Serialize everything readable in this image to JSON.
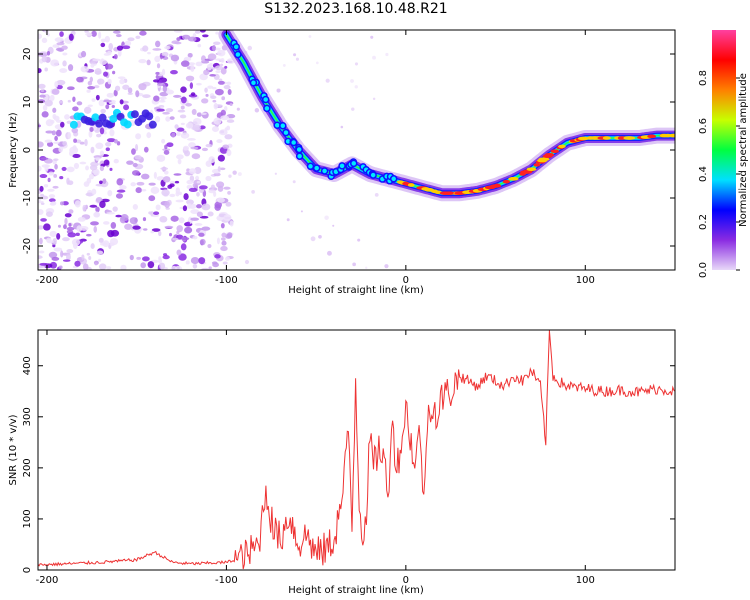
{
  "title": "S132.2023.168.10.48.R21",
  "chart_data": [
    {
      "type": "heatmap",
      "xlabel": "Height of straight line (km)",
      "ylabel": "Frequency (Hz)",
      "xlim": [
        -205,
        150
      ],
      "ylim": [
        -25,
        25
      ],
      "xticks": [
        -200,
        -100,
        0,
        100
      ],
      "yticks": [
        -20,
        -10,
        0,
        10,
        20
      ],
      "colormap": [
        "#e8d8f8",
        "#8a2be2",
        "#0000ff",
        "#00e0ff",
        "#00ff40",
        "#c8ff00",
        "#ff8000",
        "#ff0000",
        "#ff40a0"
      ],
      "colorbar": {
        "label": "Normalized spectral amplitude",
        "range": [
          0,
          1
        ],
        "ticks": [
          "0.0",
          "0.2",
          "0.4",
          "0.6",
          "0.8"
        ]
      },
      "ridge": [
        {
          "x": -100,
          "y": 24
        },
        {
          "x": -90,
          "y": 18
        },
        {
          "x": -80,
          "y": 11
        },
        {
          "x": -70,
          "y": 5
        },
        {
          "x": -60,
          "y": 0
        },
        {
          "x": -50,
          "y": -4
        },
        {
          "x": -40,
          "y": -5
        },
        {
          "x": -30,
          "y": -3
        },
        {
          "x": -20,
          "y": -5
        },
        {
          "x": -10,
          "y": -6
        },
        {
          "x": 0,
          "y": -7
        },
        {
          "x": 10,
          "y": -8
        },
        {
          "x": 20,
          "y": -9
        },
        {
          "x": 30,
          "y": -9
        },
        {
          "x": 40,
          "y": -8.5
        },
        {
          "x": 50,
          "y": -7.5
        },
        {
          "x": 60,
          "y": -6
        },
        {
          "x": 70,
          "y": -4
        },
        {
          "x": 80,
          "y": -1
        },
        {
          "x": 90,
          "y": 1.5
        },
        {
          "x": 100,
          "y": 2.5
        },
        {
          "x": 110,
          "y": 2.5
        },
        {
          "x": 120,
          "y": 2.5
        },
        {
          "x": 130,
          "y": 2.5
        },
        {
          "x": 140,
          "y": 3
        },
        {
          "x": 150,
          "y": 3
        }
      ]
    },
    {
      "type": "line",
      "xlabel": "Height of straight line (km)",
      "ylabel": "SNR (10 * v/v)",
      "xlim": [
        -205,
        150
      ],
      "ylim": [
        0,
        470
      ],
      "xticks": [
        -200,
        -100,
        0,
        100
      ],
      "yticks": [
        0,
        100,
        200,
        300,
        400
      ],
      "color": "#ee3333",
      "series": [
        {
          "x": [
            -205,
            -190,
            -170,
            -150,
            -140,
            -130,
            -120,
            -100,
            -90,
            -82,
            -78,
            -74,
            -70,
            -65,
            -60,
            -55,
            -50,
            -45,
            -40,
            -35,
            -32,
            -30,
            -28,
            -26,
            -24,
            -22,
            -20,
            -18,
            -15,
            -12,
            -10,
            -8,
            -5,
            -2,
            0,
            3,
            5,
            8,
            10,
            12,
            15,
            18,
            20,
            25,
            30,
            35,
            40,
            45,
            50,
            55,
            60,
            65,
            70,
            75,
            78,
            80,
            82,
            85,
            90,
            100,
            110,
            120,
            130,
            140,
            150
          ],
          "y": [
            10,
            12,
            15,
            20,
            35,
            15,
            12,
            15,
            25,
            50,
            160,
            80,
            60,
            110,
            50,
            70,
            30,
            40,
            60,
            150,
            280,
            90,
            370,
            140,
            60,
            120,
            260,
            200,
            240,
            220,
            130,
            300,
            200,
            260,
            320,
            250,
            200,
            280,
            120,
            300,
            330,
            290,
            340,
            350,
            380,
            370,
            360,
            380,
            370,
            360,
            380,
            370,
            390,
            360,
            250,
            470,
            380,
            370,
            360,
            355,
            350,
            352,
            348,
            355,
            350
          ]
        }
      ]
    }
  ]
}
